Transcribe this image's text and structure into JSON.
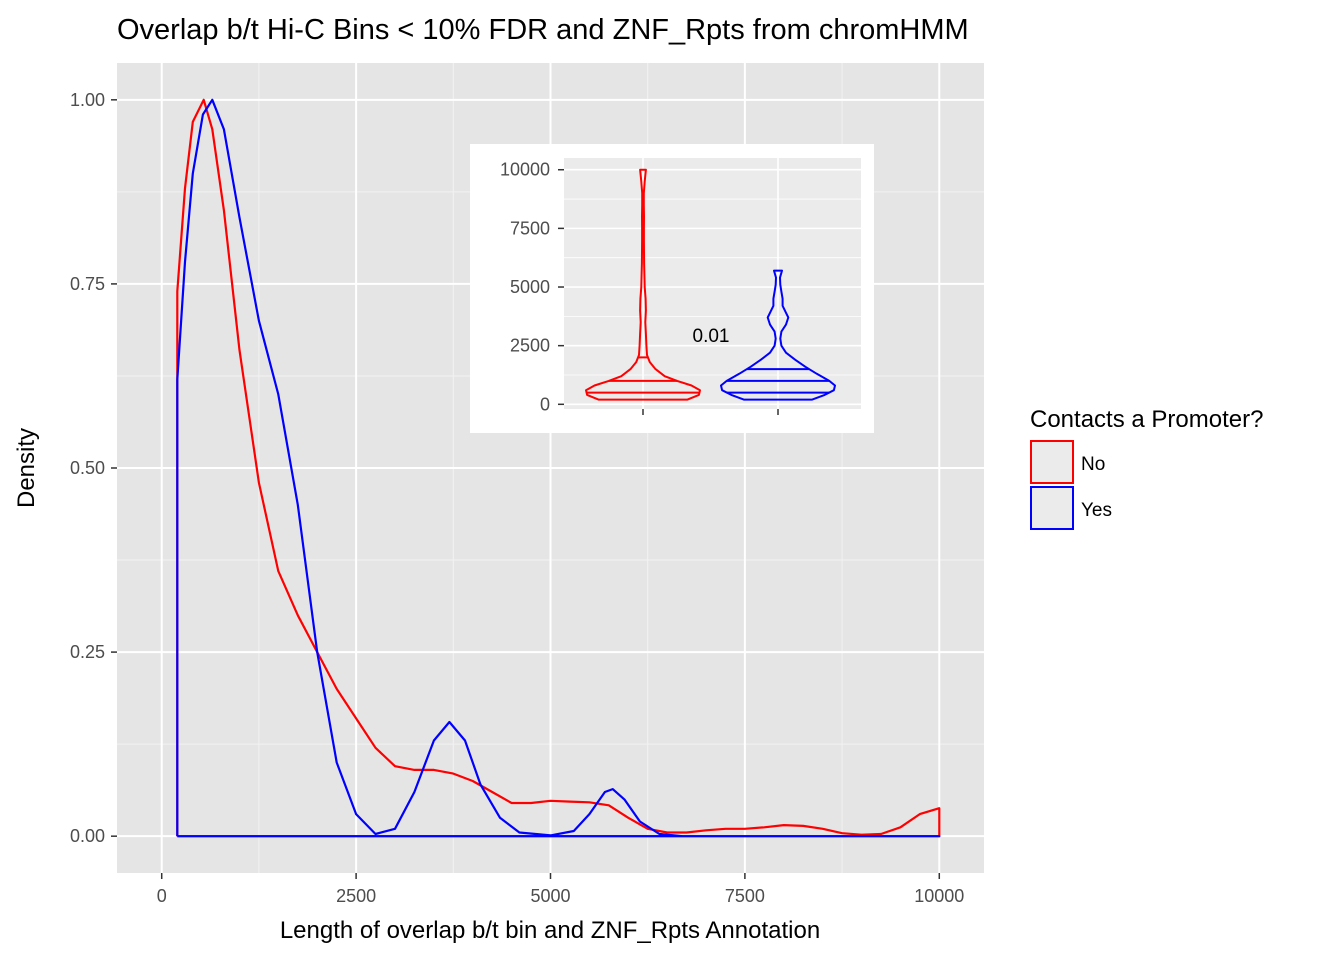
{
  "chart_data": [
    {
      "type": "density",
      "title": "Overlap b/t Hi-C Bins < 10% FDR and ZNF_Rpts from chromHMM",
      "xlabel": "Length of overlap b/t bin and ZNF_Rpts Annotation",
      "ylabel": "Density",
      "xlim": [
        -575,
        10575
      ],
      "ylim": [
        -0.05,
        1.05
      ],
      "x_ticks": [
        0,
        2500,
        5000,
        7500,
        10000
      ],
      "x_tick_labels": [
        "0",
        "2500",
        "5000",
        "7500",
        "10000"
      ],
      "y_ticks": [
        0,
        0.25,
        0.5,
        0.75,
        1.0
      ],
      "y_tick_labels": [
        "0.00",
        "0.25",
        "0.50",
        "0.75",
        "1.00"
      ],
      "grid": true,
      "legend": {
        "title": "Contacts a Promoter?",
        "position": "right",
        "entries": [
          {
            "label": "No",
            "color": "#ff0000"
          },
          {
            "label": "Yes",
            "color": "#0000ff"
          }
        ]
      },
      "series": [
        {
          "name": "No",
          "color": "#ff0000",
          "points": [
            [
              200,
              0.0
            ],
            [
              200,
              0.74
            ],
            [
              300,
              0.88
            ],
            [
              400,
              0.97
            ],
            [
              540,
              1.0
            ],
            [
              650,
              0.96
            ],
            [
              800,
              0.85
            ],
            [
              1000,
              0.66
            ],
            [
              1250,
              0.48
            ],
            [
              1500,
              0.36
            ],
            [
              1750,
              0.3
            ],
            [
              2000,
              0.25
            ],
            [
              2250,
              0.2
            ],
            [
              2500,
              0.16
            ],
            [
              2750,
              0.12
            ],
            [
              3000,
              0.095
            ],
            [
              3250,
              0.09
            ],
            [
              3500,
              0.09
            ],
            [
              3750,
              0.085
            ],
            [
              4000,
              0.075
            ],
            [
              4250,
              0.06
            ],
            [
              4500,
              0.045
            ],
            [
              4750,
              0.045
            ],
            [
              5000,
              0.048
            ],
            [
              5250,
              0.047
            ],
            [
              5500,
              0.046
            ],
            [
              5750,
              0.042
            ],
            [
              6000,
              0.025
            ],
            [
              6250,
              0.01
            ],
            [
              6500,
              0.005
            ],
            [
              6750,
              0.005
            ],
            [
              7000,
              0.008
            ],
            [
              7250,
              0.01
            ],
            [
              7500,
              0.01
            ],
            [
              7750,
              0.012
            ],
            [
              8000,
              0.015
            ],
            [
              8250,
              0.014
            ],
            [
              8500,
              0.01
            ],
            [
              8750,
              0.004
            ],
            [
              9000,
              0.002
            ],
            [
              9250,
              0.003
            ],
            [
              9500,
              0.012
            ],
            [
              9750,
              0.03
            ],
            [
              10000,
              0.038
            ],
            [
              10000,
              0.0
            ],
            [
              200,
              0.0
            ]
          ]
        },
        {
          "name": "Yes",
          "color": "#0000ff",
          "points": [
            [
              200,
              0.0
            ],
            [
              200,
              0.62
            ],
            [
              300,
              0.78
            ],
            [
              400,
              0.9
            ],
            [
              530,
              0.98
            ],
            [
              650,
              1.0
            ],
            [
              800,
              0.96
            ],
            [
              1000,
              0.84
            ],
            [
              1250,
              0.7
            ],
            [
              1500,
              0.6
            ],
            [
              1750,
              0.45
            ],
            [
              2000,
              0.25
            ],
            [
              2250,
              0.1
            ],
            [
              2500,
              0.03
            ],
            [
              2750,
              0.003
            ],
            [
              3000,
              0.01
            ],
            [
              3250,
              0.06
            ],
            [
              3500,
              0.13
            ],
            [
              3700,
              0.155
            ],
            [
              3900,
              0.13
            ],
            [
              4100,
              0.07
            ],
            [
              4350,
              0.025
            ],
            [
              4600,
              0.005
            ],
            [
              5000,
              0.001
            ],
            [
              5300,
              0.007
            ],
            [
              5500,
              0.03
            ],
            [
              5700,
              0.06
            ],
            [
              5800,
              0.064
            ],
            [
              5950,
              0.05
            ],
            [
              6150,
              0.02
            ],
            [
              6400,
              0.003
            ],
            [
              6700,
              0.0
            ],
            [
              10000,
              0.0
            ],
            [
              200,
              0.0
            ]
          ]
        }
      ]
    },
    {
      "type": "violin",
      "inset": true,
      "ylim": [
        -200,
        10500
      ],
      "y_ticks": [
        0,
        2500,
        5000,
        7500,
        10000
      ],
      "y_tick_labels": [
        "0",
        "2500",
        "5000",
        "7500",
        "10000"
      ],
      "grid": true,
      "annotation": "0.01",
      "violins": [
        {
          "name": "No",
          "color": "#ff0000",
          "quantiles": [
            500,
            1000,
            2000
          ],
          "profile": [
            [
              200,
              0.78
            ],
            [
              400,
              0.98
            ],
            [
              600,
              1.0
            ],
            [
              800,
              0.85
            ],
            [
              1000,
              0.6
            ],
            [
              1200,
              0.38
            ],
            [
              1500,
              0.22
            ],
            [
              1800,
              0.12
            ],
            [
              2100,
              0.07
            ],
            [
              2500,
              0.06
            ],
            [
              3000,
              0.05
            ],
            [
              3500,
              0.04
            ],
            [
              4000,
              0.05
            ],
            [
              4500,
              0.045
            ],
            [
              5000,
              0.03
            ],
            [
              5500,
              0.025
            ],
            [
              6000,
              0.02
            ],
            [
              6500,
              0.018
            ],
            [
              7000,
              0.016
            ],
            [
              7500,
              0.016
            ],
            [
              8000,
              0.018
            ],
            [
              8500,
              0.014
            ],
            [
              9000,
              0.014
            ],
            [
              9500,
              0.03
            ],
            [
              10000,
              0.05
            ]
          ]
        },
        {
          "name": "Yes",
          "color": "#0000ff",
          "quantiles": [
            500,
            1000,
            1500
          ],
          "profile": [
            [
              200,
              0.6
            ],
            [
              400,
              0.82
            ],
            [
              600,
              0.98
            ],
            [
              800,
              1.0
            ],
            [
              1000,
              0.9
            ],
            [
              1300,
              0.68
            ],
            [
              1600,
              0.48
            ],
            [
              1900,
              0.3
            ],
            [
              2200,
              0.14
            ],
            [
              2500,
              0.06
            ],
            [
              2800,
              0.04
            ],
            [
              3100,
              0.06
            ],
            [
              3400,
              0.14
            ],
            [
              3700,
              0.18
            ],
            [
              3900,
              0.14
            ],
            [
              4200,
              0.08
            ],
            [
              4500,
              0.08
            ],
            [
              4800,
              0.06
            ],
            [
              5100,
              0.04
            ],
            [
              5400,
              0.035
            ],
            [
              5700,
              0.07
            ]
          ]
        }
      ]
    }
  ]
}
